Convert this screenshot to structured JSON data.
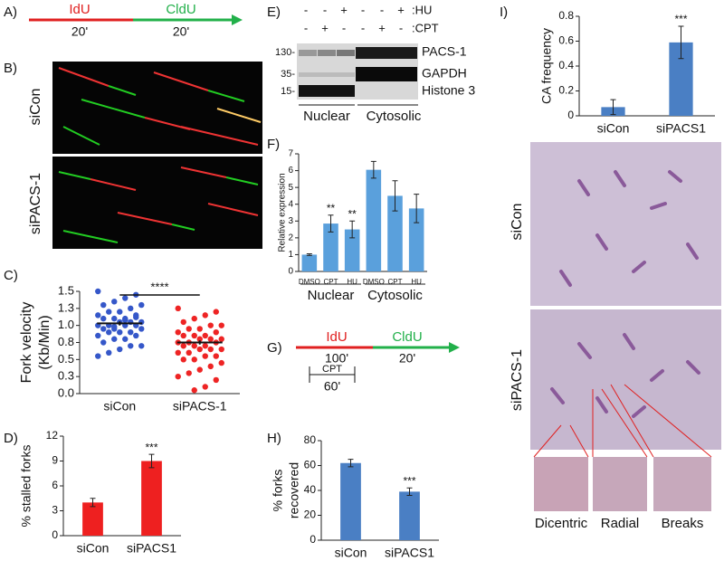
{
  "panels": {
    "a": {
      "label": "A)",
      "first": "IdU",
      "second": "CldU",
      "first_time": "20'",
      "second_time": "20'"
    },
    "b": {
      "label": "B)",
      "top": "siCon",
      "bottom": "siPACS-1"
    },
    "c": {
      "label": "C)"
    },
    "d": {
      "label": "D)"
    },
    "e": {
      "label": "E)",
      "hu_signs": [
        "-",
        "-",
        "+",
        "-",
        "-",
        "+"
      ],
      "hu": ":HU",
      "cpt_signs": [
        "-",
        "+",
        "-",
        "-",
        "+",
        "-"
      ],
      "cpt": ":CPT",
      "markers": [
        "130-",
        "35-",
        "15-"
      ],
      "bands": [
        "PACS-1",
        "GAPDH",
        "Histone 3"
      ],
      "fractions": [
        "Nuclear",
        "Cytosolic"
      ]
    },
    "f": {
      "label": "F)"
    },
    "g": {
      "label": "G)",
      "first": "IdU",
      "second": "CldU",
      "first_time": "100'",
      "second_time": "20'",
      "drug": "CPT",
      "drug_time": "60'"
    },
    "h": {
      "label": "H)"
    },
    "i": {
      "label": "I)",
      "top": "siCon",
      "bottom": "siPACS-1",
      "zooms": [
        "Dicentric",
        "Radial",
        "Breaks"
      ]
    }
  },
  "chart_data": [
    {
      "type": "strip",
      "y_label": [
        "Fork velocity",
        "(Kb/Min)"
      ],
      "categories": [
        "siCon",
        "siPACS-1"
      ],
      "series": [
        {
          "name": "siCon",
          "color": "#3557c9",
          "values": [
            1.5,
            1.45,
            1.4,
            1.35,
            1.3,
            1.3,
            1.25,
            1.2,
            1.2,
            1.15,
            1.15,
            1.1,
            1.1,
            1.1,
            1.05,
            1.05,
            1.05,
            1.0,
            1.0,
            1.0,
            1.0,
            0.95,
            0.95,
            0.95,
            0.9,
            0.9,
            0.9,
            0.85,
            0.85,
            0.8,
            0.8,
            0.75,
            0.7,
            0.7,
            0.65,
            0.6,
            0.55,
            1.12,
            1.08,
            0.98
          ],
          "mean": 1.03,
          "error": 0.03
        },
        {
          "name": "siPACS-1",
          "color": "#ee2424",
          "values": [
            1.25,
            1.2,
            1.15,
            1.1,
            1.05,
            1.0,
            1.0,
            0.95,
            0.95,
            0.9,
            0.9,
            0.85,
            0.85,
            0.85,
            0.8,
            0.8,
            0.8,
            0.75,
            0.75,
            0.75,
            0.7,
            0.7,
            0.7,
            0.65,
            0.65,
            0.65,
            0.6,
            0.6,
            0.55,
            0.55,
            0.5,
            0.5,
            0.45,
            0.4,
            0.35,
            0.3,
            0.25,
            0.2,
            0.1,
            0.05
          ],
          "mean": 0.75,
          "error": 0.03
        }
      ],
      "significance": "****",
      "ylim": [
        0,
        1.5
      ],
      "yticks": [
        {
          "value": 0,
          "label": "0.0"
        },
        {
          "value": 0.25,
          "label": "0.3"
        },
        {
          "value": 0.5,
          "label": "0.5"
        },
        {
          "value": 0.75,
          "label": "0.8"
        },
        {
          "value": 1,
          "label": "1.0"
        },
        {
          "value": 1.25,
          "label": "1.3"
        },
        {
          "value": 1.5,
          "label": "1.5"
        }
      ]
    },
    {
      "type": "bar",
      "y_label": [
        "% stalled forks"
      ],
      "categories": [
        "siCon",
        "siPACS1"
      ],
      "values": [
        4,
        9
      ],
      "errors": [
        0.5,
        0.8
      ],
      "star_labels": [
        null,
        "***"
      ],
      "color": "#ee2020",
      "ylim": [
        0,
        12
      ],
      "yticks": [
        0,
        3,
        6,
        9,
        12
      ]
    },
    {
      "type": "bar",
      "y_label": [
        "Relative expression"
      ],
      "categories": [
        "DMSO",
        "CPT",
        "HU",
        "DMSO",
        "CPT",
        "HU"
      ],
      "values": [
        1,
        2.85,
        2.5,
        6.05,
        4.5,
        3.75
      ],
      "errors": [
        0.05,
        0.5,
        0.5,
        0.5,
        0.9,
        0.85
      ],
      "star_labels": [
        null,
        "**",
        "**",
        null,
        null,
        null
      ],
      "groups": [
        "Nuclear",
        "Cytosolic"
      ],
      "color": "#5aa0dc",
      "ylim": [
        0,
        7
      ],
      "yticks": [
        0,
        1,
        2,
        3,
        4,
        5,
        6,
        7
      ]
    },
    {
      "type": "bar",
      "y_label": [
        "% forks",
        "recovered"
      ],
      "categories": [
        "siCon",
        "siPACS1"
      ],
      "values": [
        62,
        39
      ],
      "errors": [
        3,
        3
      ],
      "star_labels": [
        null,
        "***"
      ],
      "color": "#4a7fc4",
      "ylim": [
        0,
        80
      ],
      "yticks": [
        0,
        20,
        40,
        60,
        80
      ]
    },
    {
      "type": "bar",
      "y_label": [
        "CA frequency"
      ],
      "categories": [
        "siCon",
        "siPACS1"
      ],
      "values": [
        0.07,
        0.59
      ],
      "errors": [
        0.06,
        0.13
      ],
      "star_labels": [
        null,
        "***"
      ],
      "color": "#4a7fc4",
      "ylim": [
        0,
        0.8
      ],
      "yticks": [
        0,
        0.2,
        0.4,
        0.6,
        0.8
      ]
    }
  ]
}
